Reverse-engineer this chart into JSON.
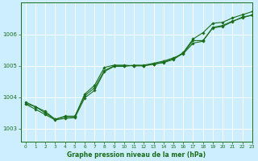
{
  "title": "Graphe pression niveau de la mer (hPa)",
  "background_color": "#cceeff",
  "grid_color": "#ffffff",
  "line_color": "#1a6e1a",
  "xlim": [
    -0.5,
    23
  ],
  "ylim": [
    1002.6,
    1007.0
  ],
  "yticks": [
    1003,
    1004,
    1005,
    1006
  ],
  "xticks": [
    0,
    1,
    2,
    3,
    4,
    5,
    6,
    7,
    8,
    9,
    10,
    11,
    12,
    13,
    14,
    15,
    16,
    17,
    18,
    19,
    20,
    21,
    22,
    23
  ],
  "series": {
    "line1": [
      1003.8,
      1003.7,
      1003.55,
      1003.3,
      1003.4,
      1003.4,
      1004.05,
      1004.3,
      1004.85,
      1005.0,
      1005.0,
      1005.0,
      1005.0,
      1005.05,
      1005.1,
      1005.2,
      1005.4,
      1005.8,
      1005.8,
      1006.2,
      1006.25,
      1006.4,
      1006.55,
      1006.6
    ],
    "line2": [
      1003.85,
      1003.7,
      1003.5,
      1003.3,
      1003.38,
      1003.38,
      1004.1,
      1004.38,
      1004.95,
      1005.02,
      1005.02,
      1005.0,
      1005.0,
      1005.05,
      1005.12,
      1005.22,
      1005.42,
      1005.85,
      1006.05,
      1006.35,
      1006.38,
      1006.52,
      1006.62,
      1006.72
    ],
    "line3": [
      1003.78,
      1003.62,
      1003.45,
      1003.28,
      1003.33,
      1003.35,
      1003.98,
      1004.22,
      1004.82,
      1004.98,
      1004.98,
      1005.02,
      1005.02,
      1005.08,
      1005.15,
      1005.25,
      1005.38,
      1005.72,
      1005.78,
      1006.22,
      1006.28,
      1006.42,
      1006.52,
      1006.62
    ]
  }
}
